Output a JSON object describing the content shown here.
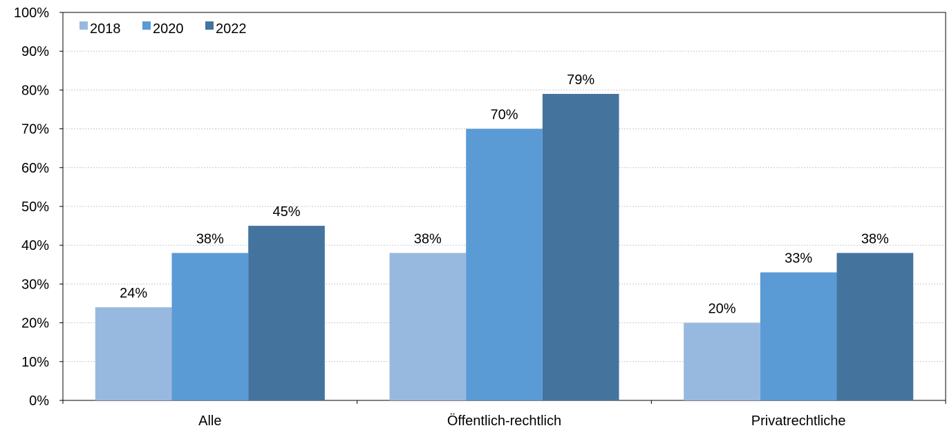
{
  "chart_data": {
    "type": "bar",
    "title": "",
    "xlabel": "",
    "ylabel": "",
    "categories": [
      "Alle",
      "Öffentlich-rechtlich",
      "Privatrechtliche"
    ],
    "series": [
      {
        "name": "2018",
        "values": [
          24,
          38,
          20
        ],
        "labels": [
          "24%",
          "38%",
          "20%"
        ],
        "color": "#98B9DF"
      },
      {
        "name": "2020",
        "values": [
          38,
          70,
          33
        ],
        "labels": [
          "38%",
          "70%",
          "33%"
        ],
        "color": "#5B9BD5"
      },
      {
        "name": "2022",
        "values": [
          45,
          79,
          38
        ],
        "labels": [
          "45%",
          "79%",
          "38%"
        ],
        "color": "#44749E"
      }
    ],
    "ylim": [
      0,
      100
    ],
    "yticks": [
      0,
      10,
      20,
      30,
      40,
      50,
      60,
      70,
      80,
      90,
      100
    ],
    "ytick_labels": [
      "0%",
      "10%",
      "20%",
      "30%",
      "40%",
      "50%",
      "60%",
      "70%",
      "80%",
      "90%",
      "100%"
    ],
    "grid": true,
    "legend_position": "top-left"
  }
}
